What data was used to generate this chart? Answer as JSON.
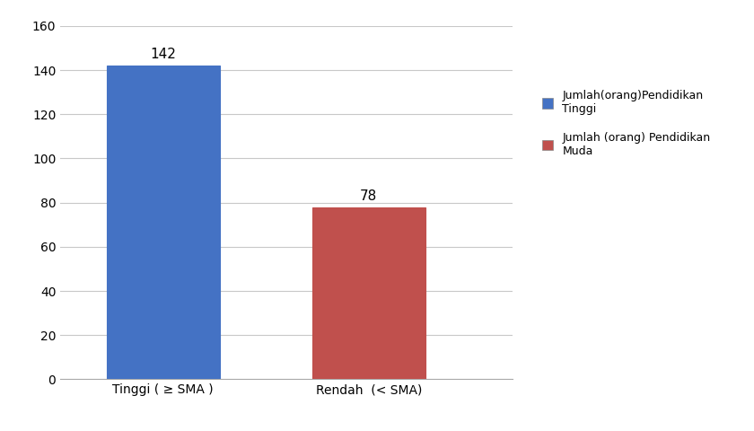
{
  "categories": [
    "Tinggi ( ≥ SMA )",
    "Rendah  (< SMA)"
  ],
  "values": [
    142,
    78
  ],
  "bar_colors": [
    "#4472C4",
    "#C0504D"
  ],
  "bar_edge_colors": [
    "#4472C4",
    "#C0504D"
  ],
  "ylim": [
    0,
    160
  ],
  "yticks": [
    0,
    20,
    40,
    60,
    80,
    100,
    120,
    140,
    160
  ],
  "legend_labels": [
    "Jumlah(orang)Pendidikan\nTinggi",
    "Jumlah (orang) Pendidikan\nMuda"
  ],
  "legend_colors": [
    "#4472C4",
    "#C0504D"
  ],
  "value_labels": [
    "142",
    "78"
  ],
  "background_color": "#ffffff",
  "grid_color": "#c8c8c8",
  "tick_fontsize": 10,
  "legend_fontsize": 9,
  "value_fontsize": 11
}
